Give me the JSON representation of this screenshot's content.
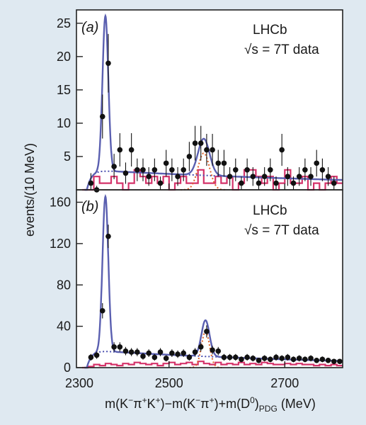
{
  "chart_data": [
    {
      "type": "scatter",
      "panel_label": "(a)",
      "annotation_line1": "LHCb",
      "annotation_line2": "√s = 7T data",
      "xlim": [
        2340,
        2800
      ],
      "ylim": [
        0,
        27
      ],
      "yticks": [
        5,
        10,
        15,
        20,
        25
      ],
      "xticks": [
        2300,
        2500,
        2700
      ],
      "points": [
        {
          "x": 2365,
          "y": 1,
          "err": 1.5
        },
        {
          "x": 2375,
          "y": 0,
          "err": 0.6
        },
        {
          "x": 2385,
          "y": 11,
          "err": 3.3
        },
        {
          "x": 2395,
          "y": 19,
          "err": 4.4
        },
        {
          "x": 2405,
          "y": 3.5,
          "err": 1.9
        },
        {
          "x": 2415,
          "y": 6,
          "err": 2.5
        },
        {
          "x": 2425,
          "y": 2.5,
          "err": 1.6
        },
        {
          "x": 2435,
          "y": 6,
          "err": 2.5
        },
        {
          "x": 2445,
          "y": 3,
          "err": 1.7
        },
        {
          "x": 2455,
          "y": 3,
          "err": 1.7
        },
        {
          "x": 2465,
          "y": 2,
          "err": 1.4
        },
        {
          "x": 2475,
          "y": 3,
          "err": 1.7
        },
        {
          "x": 2485,
          "y": 1,
          "err": 1.0
        },
        {
          "x": 2495,
          "y": 4,
          "err": 2.0
        },
        {
          "x": 2505,
          "y": 3,
          "err": 1.7
        },
        {
          "x": 2515,
          "y": 2,
          "err": 1.4
        },
        {
          "x": 2525,
          "y": 3,
          "err": 1.7
        },
        {
          "x": 2535,
          "y": 5,
          "err": 2.2
        },
        {
          "x": 2545,
          "y": 7,
          "err": 2.6
        },
        {
          "x": 2555,
          "y": 7,
          "err": 2.6
        },
        {
          "x": 2565,
          "y": 6,
          "err": 2.4
        },
        {
          "x": 2575,
          "y": 6,
          "err": 2.4
        },
        {
          "x": 2585,
          "y": 4,
          "err": 2.0
        },
        {
          "x": 2595,
          "y": 4,
          "err": 2.0
        },
        {
          "x": 2605,
          "y": 2,
          "err": 1.4
        },
        {
          "x": 2615,
          "y": 3,
          "err": 1.7
        },
        {
          "x": 2625,
          "y": 1,
          "err": 1.0
        },
        {
          "x": 2635,
          "y": 3,
          "err": 1.7
        },
        {
          "x": 2645,
          "y": 2,
          "err": 1.4
        },
        {
          "x": 2655,
          "y": 1,
          "err": 1.0
        },
        {
          "x": 2665,
          "y": 2,
          "err": 1.4
        },
        {
          "x": 2675,
          "y": 3,
          "err": 1.7
        },
        {
          "x": 2685,
          "y": 1,
          "err": 1.0
        },
        {
          "x": 2695,
          "y": 6,
          "err": 2.4
        },
        {
          "x": 2705,
          "y": 2,
          "err": 1.4
        },
        {
          "x": 2715,
          "y": 1,
          "err": 1.0
        },
        {
          "x": 2725,
          "y": 2,
          "err": 1.4
        },
        {
          "x": 2735,
          "y": 3,
          "err": 1.7
        },
        {
          "x": 2745,
          "y": 2,
          "err": 1.4
        },
        {
          "x": 2755,
          "y": 4,
          "err": 2.0
        },
        {
          "x": 2765,
          "y": 3,
          "err": 1.7
        },
        {
          "x": 2775,
          "y": 2,
          "err": 1.4
        },
        {
          "x": 2785,
          "y": 1,
          "err": 1.0
        }
      ],
      "histogram": {
        "x0": 2350,
        "width": 10,
        "values": [
          0,
          0,
          2,
          1,
          1,
          2,
          1,
          0,
          1,
          3,
          2,
          1,
          2,
          1,
          2,
          0,
          1,
          2,
          1,
          1,
          3,
          1,
          1,
          2,
          1,
          2,
          0,
          1,
          3,
          3,
          2,
          1,
          2,
          0,
          1,
          3,
          1,
          1,
          2,
          0,
          1,
          0,
          1,
          2,
          1
        ]
      },
      "fit": {
        "threshold": 2358,
        "bkg_amp": 3.0,
        "bkg_slope": 0.0016,
        "peak1_mu": 2390,
        "peak1_sigma": 5.0,
        "peak1_amp": 23.3,
        "peak2_mu": 2560,
        "peak2_sigma": 10.0,
        "peak2_amp": 5.5
      }
    },
    {
      "type": "scatter",
      "panel_label": "(b)",
      "annotation_line1": "LHCb",
      "annotation_line2": "√s = 7T data",
      "xlim": [
        2340,
        2800
      ],
      "ylim": [
        0,
        172
      ],
      "yticks": [
        0,
        40,
        80,
        120,
        160
      ],
      "xticks": [
        2300,
        2500,
        2700
      ],
      "points": [
        {
          "x": 2365,
          "y": 10,
          "err": 3.2
        },
        {
          "x": 2375,
          "y": 12,
          "err": 3.5
        },
        {
          "x": 2385,
          "y": 55,
          "err": 7.4
        },
        {
          "x": 2395,
          "y": 127,
          "err": 11.3
        },
        {
          "x": 2405,
          "y": 20,
          "err": 4.5
        },
        {
          "x": 2415,
          "y": 20,
          "err": 4.5
        },
        {
          "x": 2425,
          "y": 16,
          "err": 4.0
        },
        {
          "x": 2435,
          "y": 15,
          "err": 3.9
        },
        {
          "x": 2445,
          "y": 15,
          "err": 3.9
        },
        {
          "x": 2455,
          "y": 11,
          "err": 3.3
        },
        {
          "x": 2465,
          "y": 14,
          "err": 3.7
        },
        {
          "x": 2475,
          "y": 10,
          "err": 3.2
        },
        {
          "x": 2485,
          "y": 15,
          "err": 3.9
        },
        {
          "x": 2495,
          "y": 9,
          "err": 3.0
        },
        {
          "x": 2505,
          "y": 14,
          "err": 3.7
        },
        {
          "x": 2515,
          "y": 13,
          "err": 3.6
        },
        {
          "x": 2525,
          "y": 14,
          "err": 3.7
        },
        {
          "x": 2535,
          "y": 10,
          "err": 3.2
        },
        {
          "x": 2545,
          "y": 15,
          "err": 3.9
        },
        {
          "x": 2555,
          "y": 20,
          "err": 4.5
        },
        {
          "x": 2565,
          "y": 35,
          "err": 5.9
        },
        {
          "x": 2575,
          "y": 17,
          "err": 4.1
        },
        {
          "x": 2585,
          "y": 16,
          "err": 4.0
        },
        {
          "x": 2595,
          "y": 10,
          "err": 3.2
        },
        {
          "x": 2605,
          "y": 10,
          "err": 3.2
        },
        {
          "x": 2615,
          "y": 10,
          "err": 3.2
        },
        {
          "x": 2625,
          "y": 8,
          "err": 2.8
        },
        {
          "x": 2635,
          "y": 10,
          "err": 3.2
        },
        {
          "x": 2645,
          "y": 9,
          "err": 3.0
        },
        {
          "x": 2655,
          "y": 7,
          "err": 2.6
        },
        {
          "x": 2665,
          "y": 9,
          "err": 3.0
        },
        {
          "x": 2675,
          "y": 8,
          "err": 2.8
        },
        {
          "x": 2685,
          "y": 10,
          "err": 3.2
        },
        {
          "x": 2695,
          "y": 9,
          "err": 3.0
        },
        {
          "x": 2705,
          "y": 10,
          "err": 3.2
        },
        {
          "x": 2715,
          "y": 8,
          "err": 2.8
        },
        {
          "x": 2725,
          "y": 9,
          "err": 3.0
        },
        {
          "x": 2735,
          "y": 8,
          "err": 2.8
        },
        {
          "x": 2745,
          "y": 9,
          "err": 3.0
        },
        {
          "x": 2755,
          "y": 7,
          "err": 2.6
        },
        {
          "x": 2765,
          "y": 8,
          "err": 2.8
        },
        {
          "x": 2775,
          "y": 7,
          "err": 2.6
        },
        {
          "x": 2785,
          "y": 6,
          "err": 2.4
        },
        {
          "x": 2795,
          "y": 6,
          "err": 2.4
        }
      ],
      "histogram": {
        "x0": 2350,
        "width": 10,
        "values": [
          0,
          1,
          3,
          2,
          4,
          3,
          2,
          4,
          3,
          5,
          4,
          3,
          4,
          2,
          4,
          5,
          3,
          4,
          5,
          3,
          6,
          4,
          3,
          5,
          3,
          4,
          3,
          5,
          3,
          4,
          3,
          5,
          4,
          3,
          3,
          4,
          3,
          4,
          3,
          3,
          2,
          3,
          2,
          3,
          2
        ]
      },
      "fit": {
        "threshold": 2358,
        "bkg_amp": 17.0,
        "bkg_slope": 0.0022,
        "peak1_mu": 2390,
        "peak1_sigma": 5.0,
        "peak1_amp": 150,
        "peak2_mu": 2563,
        "peak2_sigma": 7.0,
        "peak2_amp": 35
      }
    }
  ],
  "ylabel": "events/(10 MeV)",
  "xlabel_main": "m(K",
  "xlabel_sup1": "−",
  "xlabel_mid1": "π",
  "xlabel_sup2": "+",
  "xlabel_mid2": "K",
  "xlabel_sup3": "+",
  "xlabel_mid3": ")−m(K",
  "xlabel_sup4": "−",
  "xlabel_mid4": "π",
  "xlabel_sup5": "+",
  "xlabel_mid5": ")+m(D",
  "xlabel_sup6": "0",
  "xlabel_mid6": ")",
  "xlabel_sub": "PDG",
  "xlabel_end": " (MeV)",
  "colors": {
    "fit": "#5a5fb0",
    "signal": "#e0622a",
    "background": "#4a4fb0",
    "histogram": "#d4336a",
    "points": "#111111"
  }
}
